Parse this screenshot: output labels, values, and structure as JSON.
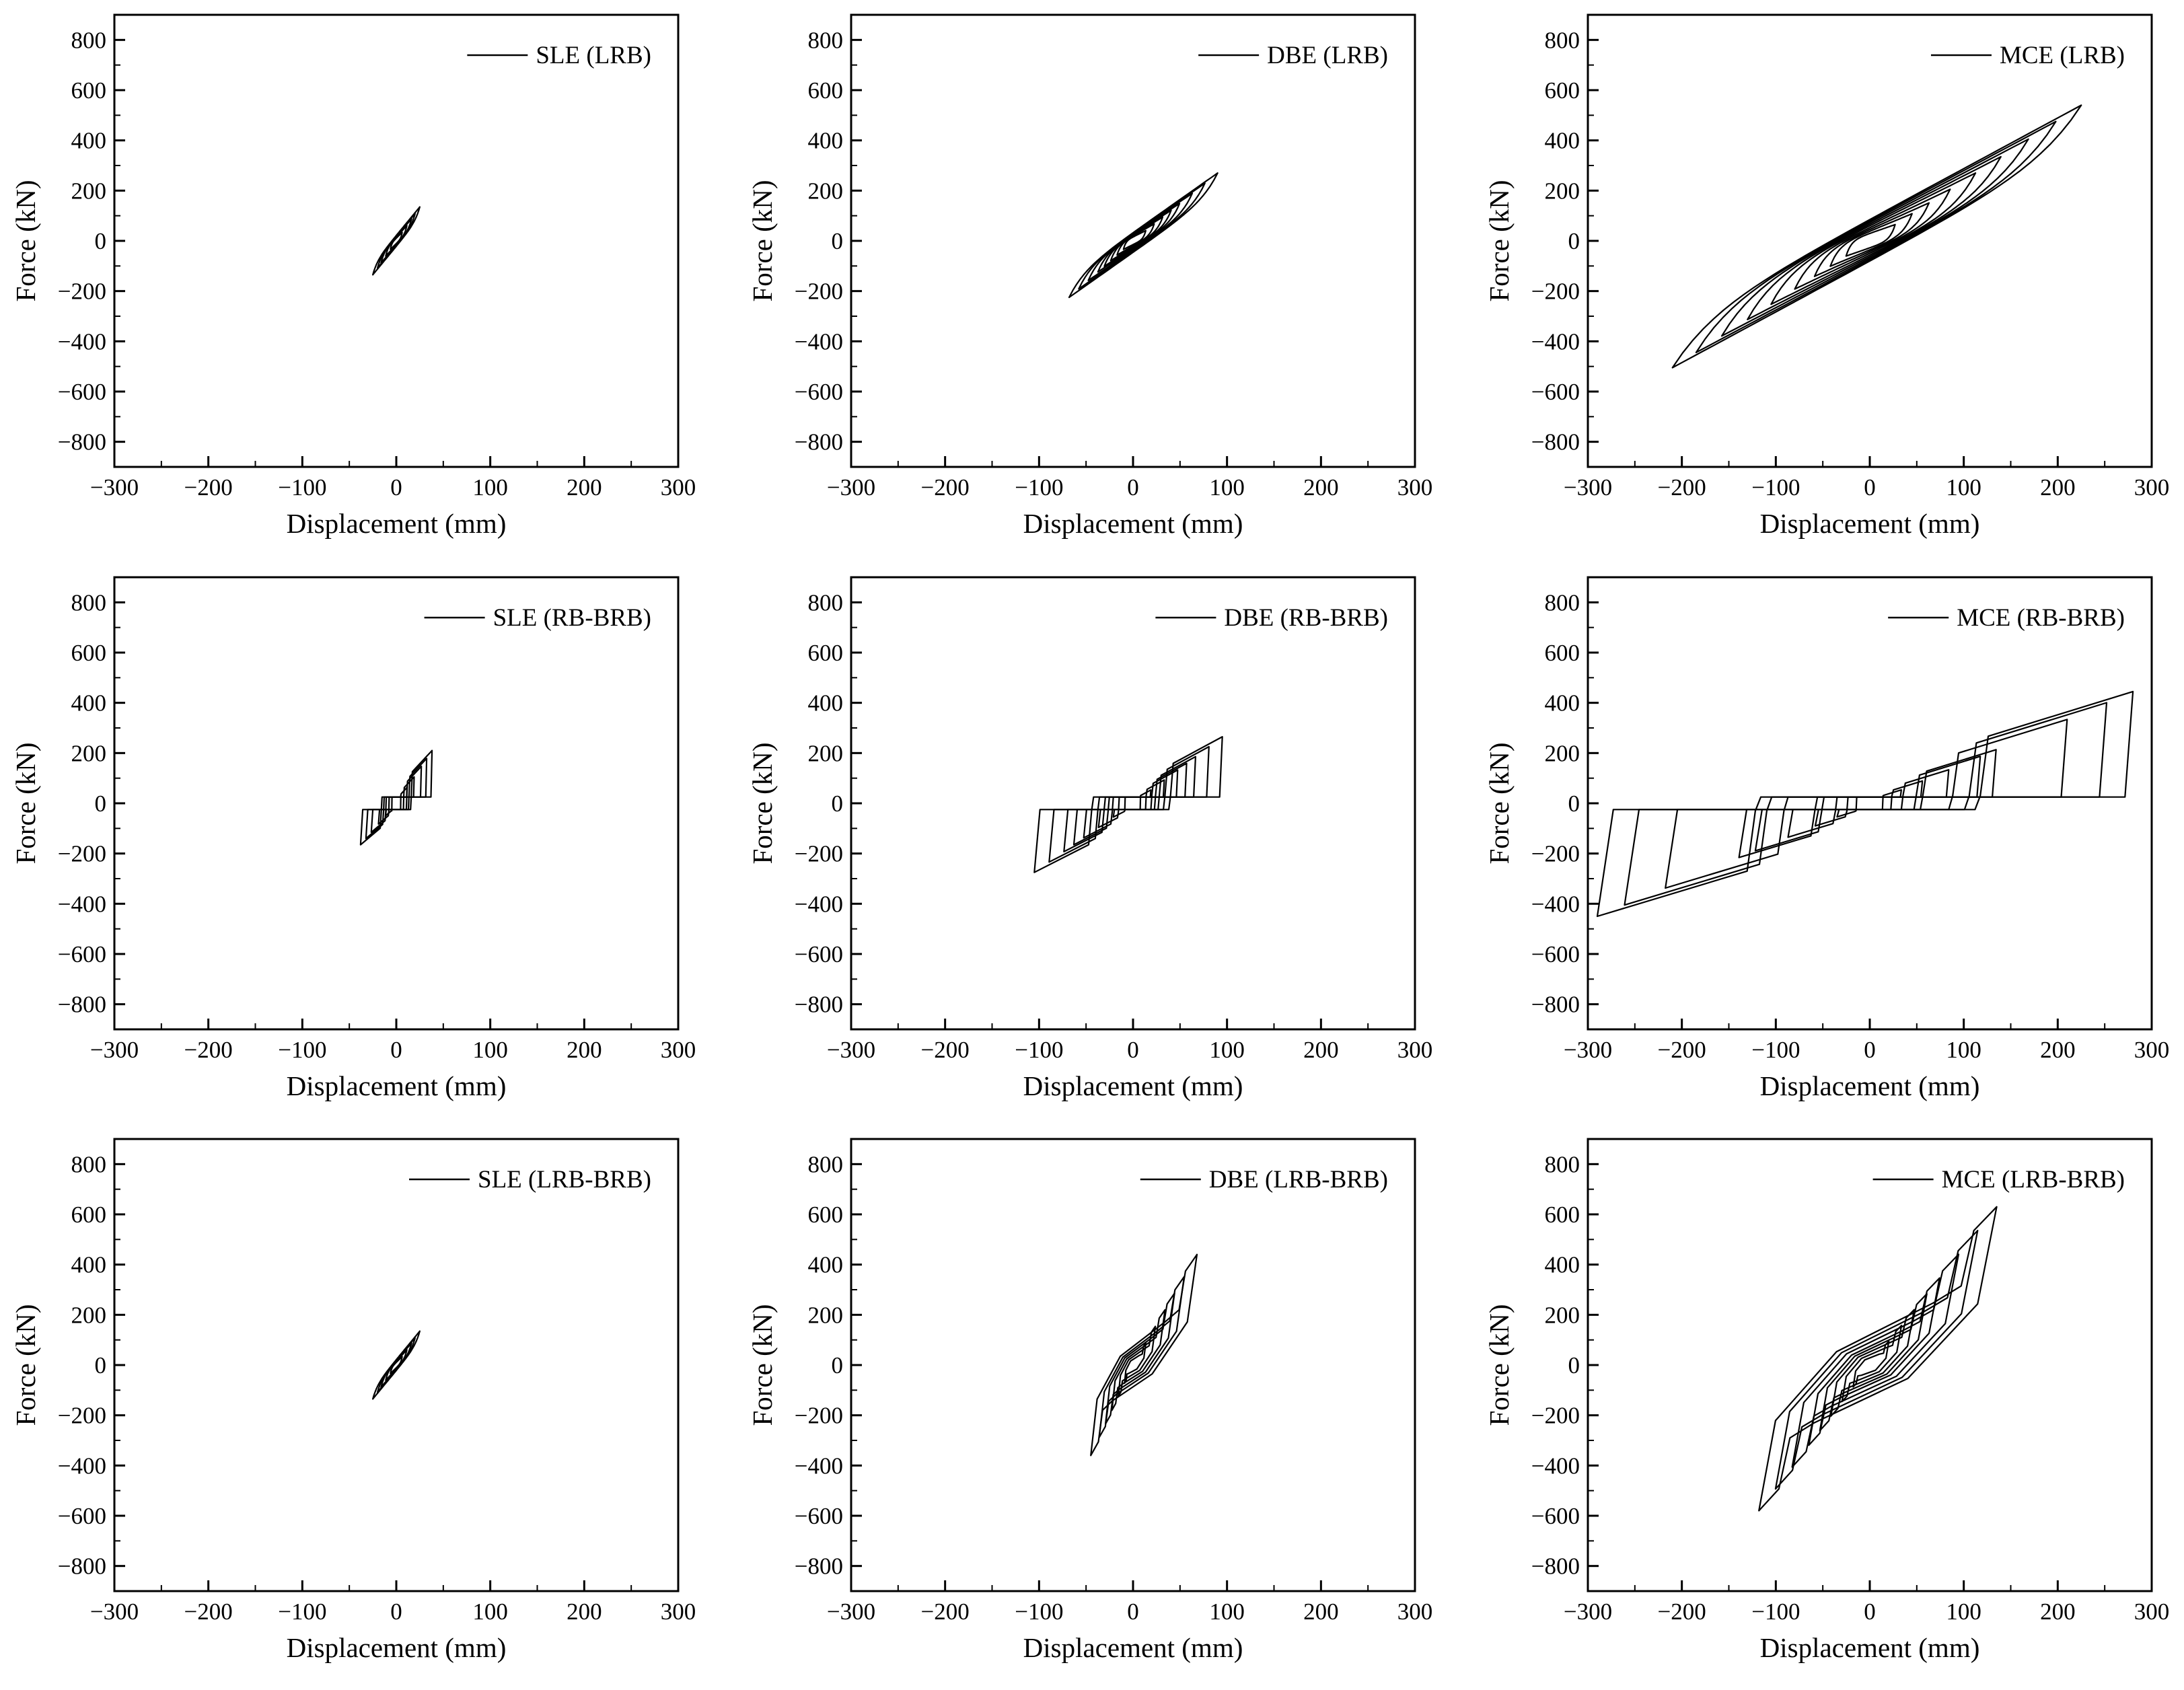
{
  "chart_data": [
    {
      "id": "sle-lrb",
      "type": "line",
      "legend": "SLE (LRB)",
      "xlabel": "Displacement (mm)",
      "ylabel": "Force (kN)",
      "xlim": [
        -300,
        300
      ],
      "ylim": [
        -900,
        900
      ],
      "xticks": [
        -300,
        -200,
        -100,
        0,
        100,
        200,
        300
      ],
      "yticks": [
        -800,
        -600,
        -400,
        -200,
        0,
        200,
        400,
        600,
        800
      ],
      "legend_position": "top-right",
      "grid": false,
      "model": "lrb",
      "peaks": [
        [
          -25,
          -135
        ],
        [
          25,
          135
        ]
      ],
      "loops": [
        0.25,
        0.45,
        0.65,
        0.8,
        1.0
      ]
    },
    {
      "id": "dbe-lrb",
      "type": "line",
      "legend": "DBE (LRB)",
      "xlabel": "Displacement (mm)",
      "ylabel": "Force (kN)",
      "xlim": [
        -300,
        300
      ],
      "ylim": [
        -900,
        900
      ],
      "xticks": [
        -300,
        -200,
        -100,
        0,
        100,
        200,
        300
      ],
      "yticks": [
        -800,
        -600,
        -400,
        -200,
        0,
        200,
        400,
        600,
        800
      ],
      "legend_position": "top-right",
      "grid": false,
      "model": "lrb",
      "peaks": [
        [
          -68,
          -225
        ],
        [
          90,
          270
        ]
      ],
      "loops": [
        0.15,
        0.25,
        0.35,
        0.45,
        0.55,
        0.7,
        0.85,
        1.0
      ]
    },
    {
      "id": "mce-lrb",
      "type": "line",
      "legend": "MCE (LRB)",
      "xlabel": "Displacement (mm)",
      "ylabel": "Force (kN)",
      "xlim": [
        -300,
        300
      ],
      "ylim": [
        -900,
        900
      ],
      "xticks": [
        -300,
        -200,
        -100,
        0,
        100,
        200,
        300
      ],
      "yticks": [
        -800,
        -600,
        -400,
        -200,
        0,
        200,
        400,
        600,
        800
      ],
      "legend_position": "top-right",
      "grid": false,
      "model": "lrb",
      "peaks": [
        [
          -210,
          -505
        ],
        [
          225,
          540
        ]
      ],
      "loops": [
        0.12,
        0.2,
        0.28,
        0.38,
        0.5,
        0.62,
        0.75,
        0.88,
        1.0
      ]
    },
    {
      "id": "sle-rb-brb",
      "type": "line",
      "legend": "SLE (RB-BRB)",
      "xlabel": "Displacement (mm)",
      "ylabel": "Force (kN)",
      "xlim": [
        -300,
        300
      ],
      "ylim": [
        -900,
        900
      ],
      "xticks": [
        -300,
        -200,
        -100,
        0,
        100,
        200,
        300
      ],
      "yticks": [
        -800,
        -600,
        -400,
        -200,
        0,
        200,
        400,
        600,
        800
      ],
      "legend_position": "top-right",
      "grid": false,
      "model": "rbbrb",
      "peaks": [
        [
          -38,
          -165
        ],
        [
          38,
          210
        ]
      ],
      "loops": [
        0.3,
        0.5,
        0.7,
        0.85,
        1.0
      ]
    },
    {
      "id": "dbe-rb-brb",
      "type": "line",
      "legend": "DBE (RB-BRB)",
      "xlabel": "Displacement (mm)",
      "ylabel": "Force (kN)",
      "xlim": [
        -300,
        300
      ],
      "ylim": [
        -900,
        900
      ],
      "xticks": [
        -300,
        -200,
        -100,
        0,
        100,
        200,
        300
      ],
      "yticks": [
        -800,
        -600,
        -400,
        -200,
        0,
        200,
        400,
        600,
        800
      ],
      "legend_position": "top-right",
      "grid": false,
      "model": "rbbrb",
      "peaks": [
        [
          -105,
          -275
        ],
        [
          95,
          265
        ]
      ],
      "loops": [
        0.2,
        0.35,
        0.5,
        0.6,
        0.7,
        0.85,
        1.0
      ]
    },
    {
      "id": "mce-rb-brb",
      "type": "line",
      "legend": "MCE (RB-BRB)",
      "xlabel": "Displacement (mm)",
      "ylabel": "Force (kN)",
      "xlim": [
        -300,
        300
      ],
      "ylim": [
        -900,
        900
      ],
      "xticks": [
        -300,
        -200,
        -100,
        0,
        100,
        200,
        300
      ],
      "yticks": [
        -800,
        -600,
        -400,
        -200,
        0,
        200,
        400,
        600,
        800
      ],
      "legend_position": "top-right",
      "grid": false,
      "model": "rbbrb",
      "peaks": [
        [
          -290,
          -450
        ],
        [
          280,
          445
        ]
      ],
      "loops": [
        0.12,
        0.2,
        0.3,
        0.42,
        0.48,
        0.75,
        0.9,
        1.0
      ]
    },
    {
      "id": "sle-lrb-brb",
      "type": "line",
      "legend": "SLE (LRB-BRB)",
      "xlabel": "Displacement (mm)",
      "ylabel": "Force (kN)",
      "xlim": [
        -300,
        300
      ],
      "ylim": [
        -900,
        900
      ],
      "xticks": [
        -300,
        -200,
        -100,
        0,
        100,
        200,
        300
      ],
      "yticks": [
        -800,
        -600,
        -400,
        -200,
        0,
        200,
        400,
        600,
        800
      ],
      "legend_position": "top-right",
      "grid": false,
      "model": "lrb",
      "peaks": [
        [
          -25,
          -135
        ],
        [
          25,
          135
        ]
      ],
      "loops": [
        0.25,
        0.45,
        0.65,
        0.8,
        1.0
      ]
    },
    {
      "id": "dbe-lrb-brb",
      "type": "line",
      "legend": "DBE (LRB-BRB)",
      "xlabel": "Displacement (mm)",
      "ylabel": "Force (kN)",
      "xlim": [
        -300,
        300
      ],
      "ylim": [
        -900,
        900
      ],
      "xticks": [
        -300,
        -200,
        -100,
        0,
        100,
        200,
        300
      ],
      "yticks": [
        -800,
        -600,
        -400,
        -200,
        0,
        200,
        400,
        600,
        800
      ],
      "legend_position": "top-right",
      "grid": false,
      "model": "lrbbrb",
      "peaks": [
        [
          -45,
          -360
        ],
        [
          68,
          440
        ]
      ],
      "loops": [
        0.2,
        0.35,
        0.5,
        0.65,
        0.8,
        1.0
      ]
    },
    {
      "id": "mce-lrb-brb",
      "type": "line",
      "legend": "MCE (LRB-BRB)",
      "xlabel": "Displacement (mm)",
      "ylabel": "Force (kN)",
      "xlim": [
        -300,
        300
      ],
      "ylim": [
        -900,
        900
      ],
      "xticks": [
        -300,
        -200,
        -100,
        0,
        100,
        200,
        300
      ],
      "yticks": [
        -800,
        -600,
        -400,
        -200,
        0,
        200,
        400,
        600,
        800
      ],
      "legend_position": "top-right",
      "grid": false,
      "model": "lrbbrb",
      "peaks": [
        [
          -118,
          -580
        ],
        [
          135,
          630
        ]
      ],
      "loops": [
        0.15,
        0.25,
        0.35,
        0.45,
        0.55,
        0.7,
        0.85,
        1.0
      ]
    }
  ]
}
